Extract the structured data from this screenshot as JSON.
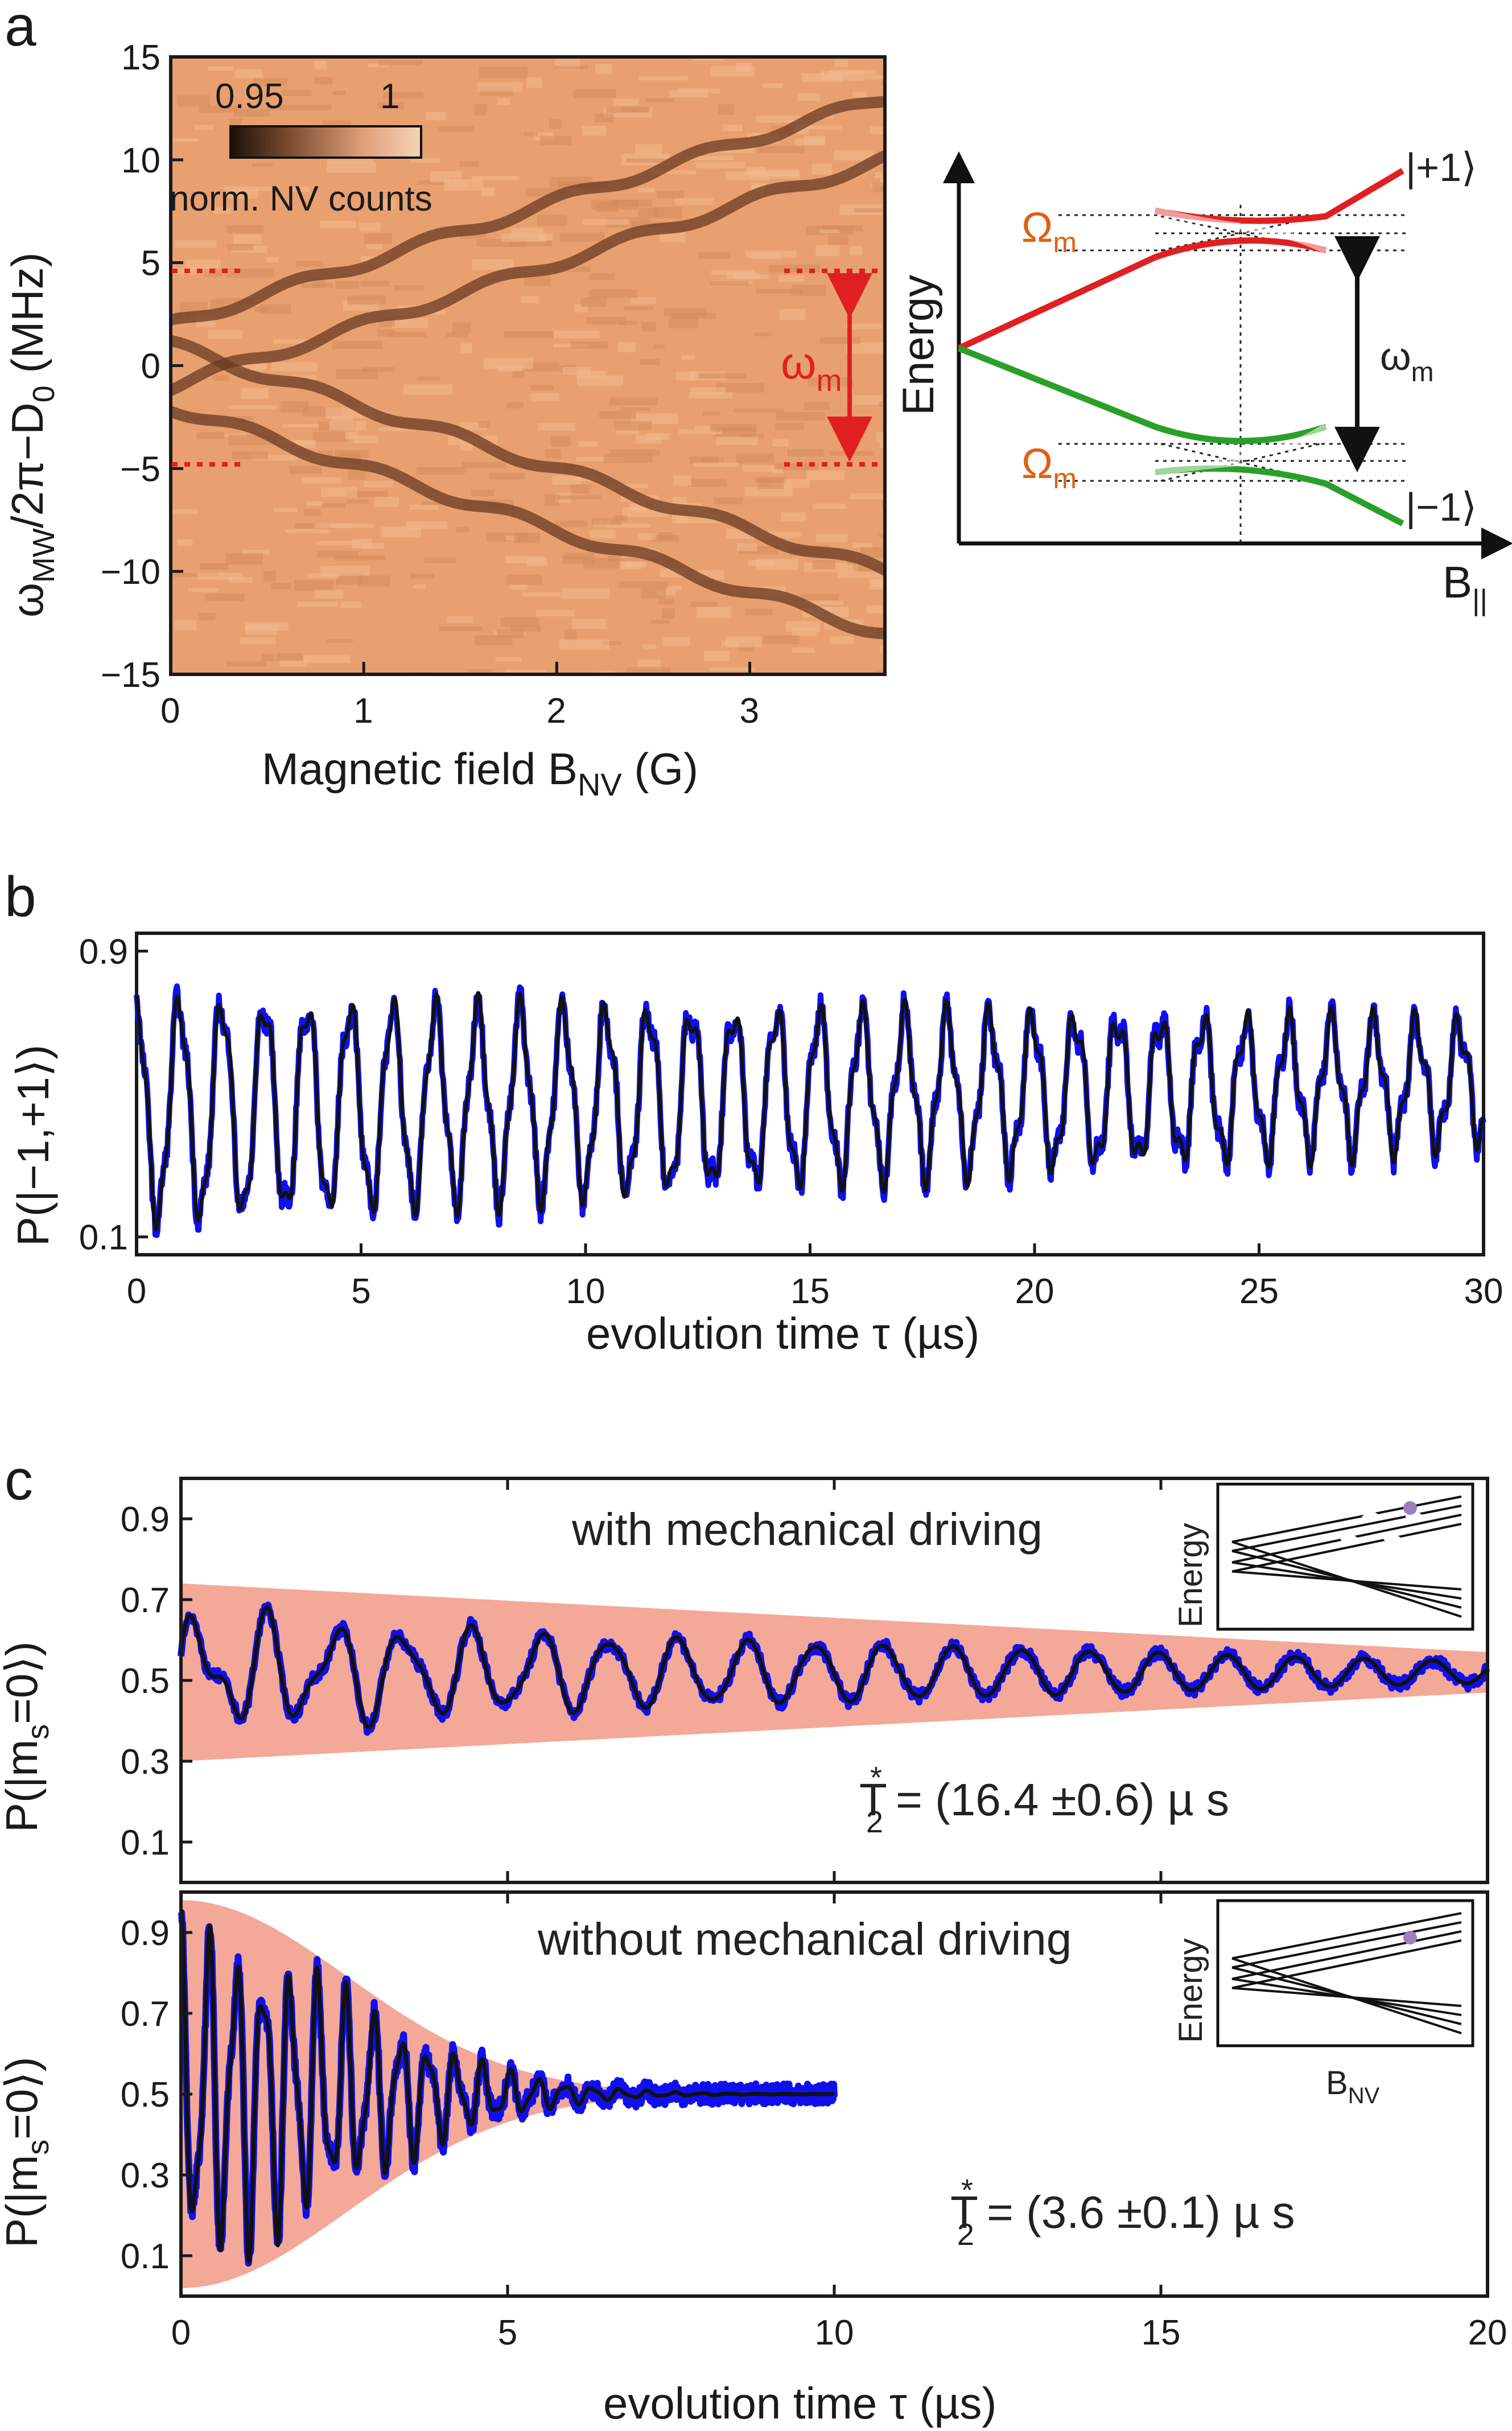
{
  "panels": {
    "a": {
      "letter": "a",
      "xlabel_main": "Magnetic field B",
      "xlabel_sub": "NV",
      "xlabel_unit": " (G)",
      "ylabel_parts": [
        "ω",
        "MW",
        "/2π−D",
        "0",
        " (MHz)"
      ],
      "colorbar": {
        "min_label": "0.95",
        "max_label": "1",
        "label": "norm. NV counts"
      },
      "omega_m_label": "ω",
      "omega_m_sub": "m",
      "xticks": [
        "0",
        "1",
        "2",
        "3"
      ],
      "yticks": [
        "15",
        "10",
        "5",
        "0",
        "−5",
        "−10",
        "−15"
      ]
    },
    "a_right": {
      "y_axis_label": "Energy",
      "x_axis_label": "B",
      "x_axis_sub": "||",
      "state_plus": "|+1⟩",
      "state_minus": "|−1⟩",
      "Omega_label": "Ω",
      "Omega_sub": "m",
      "omega_label": "ω",
      "omega_sub": "m"
    },
    "b": {
      "letter": "b",
      "ylabel": "P(|−1,+1⟩)",
      "xlabel": "evolution time τ (µs)",
      "xticks": [
        "0",
        "5",
        "10",
        "15",
        "20",
        "25",
        "30"
      ],
      "yticks": [
        "0.9",
        "0.1"
      ]
    },
    "c": {
      "letter": "c",
      "top_title": "with mechanical driving",
      "bottom_title": "without mechanical driving",
      "top_T2": "T",
      "top_T2_value": " = (16.4 ±0.6) µ s",
      "bottom_T2_value": " = (3.6 ±0.1) µ s",
      "T2_sub": "2",
      "T2_sup": "*",
      "ylabel": "P(|m",
      "ylabel_sub": "s",
      "ylabel_end": "=0⟩)",
      "xlabel": "evolution time τ (µs)",
      "xticks": [
        "0",
        "5",
        "10",
        "15",
        "20"
      ],
      "yticks": [
        "0.9",
        "0.7",
        "0.5",
        "0.3",
        "0.1"
      ],
      "inset_ylabel": "Energy",
      "inset_xlabel": "B",
      "inset_xsub": "NV"
    }
  },
  "colors": {
    "heatmap_bg": "#e8a070",
    "resonance_line": "#6b3a22",
    "red_marker": "#e02020",
    "omega_orange": "#e06010",
    "green": "#2aa02a",
    "red": "#e02020",
    "data_blue": "#1010ee",
    "fit_black": "#111111",
    "envelope": "#f3a898",
    "inset_dot": "#9a80c0"
  },
  "chart_data": [
    {
      "id": "a-heatmap",
      "type": "heatmap",
      "xlabel": "Magnetic field B_NV (G)",
      "ylabel": "ω_MW/2π−D_0 (MHz)",
      "xlim": [
        0,
        3.7
      ],
      "ylim": [
        -15,
        15
      ],
      "colorbar_range": [
        0.95,
        1
      ],
      "colorbar_label": "norm. NV counts",
      "resonance_branches": [
        {
          "name": "upper-1",
          "x": [
            0,
            1,
            2,
            3,
            3.7
          ],
          "y": [
            2,
            5,
            8,
            11,
            13
          ]
        },
        {
          "name": "upper-2",
          "x": [
            0,
            1,
            2,
            3,
            3.7
          ],
          "y": [
            -1,
            2,
            5,
            8,
            10
          ]
        },
        {
          "name": "lower-1",
          "x": [
            0,
            1,
            2,
            3,
            3.7
          ],
          "y": [
            1,
            -2,
            -5,
            -8,
            -10
          ]
        },
        {
          "name": "lower-2",
          "x": [
            0,
            1,
            2,
            3,
            3.7
          ],
          "y": [
            -2,
            -5,
            -8,
            -11,
            -13
          ]
        }
      ],
      "markers": {
        "omega_m_upper": 4.8,
        "omega_m_lower": -4.8
      }
    },
    {
      "id": "b-oscillation",
      "type": "line",
      "xlabel": "evolution time τ (µs)",
      "ylabel": "P(|−1,+1⟩)",
      "xlim": [
        0,
        30
      ],
      "ylim": [
        0.05,
        0.95
      ],
      "params": {
        "period_us": 0.95,
        "center_start": 0.45,
        "center_end": 0.53,
        "amp_start": 0.3,
        "amp_end": 0.16
      },
      "series": [
        {
          "name": "data",
          "color": "#1010ee"
        },
        {
          "name": "fit",
          "color": "#111111"
        }
      ]
    },
    {
      "id": "c-top",
      "type": "line",
      "xlabel": "evolution time τ (µs)",
      "ylabel": "P(|m_s=0⟩)",
      "xlim": [
        0,
        20
      ],
      "ylim": [
        0,
        1
      ],
      "title": "with mechanical driving",
      "T2star_us": 16.4,
      "T2star_err": 0.6,
      "envelope": {
        "center": 0.52,
        "half_width_start": 0.22,
        "half_width_end": 0.05
      },
      "series": [
        {
          "name": "data",
          "color": "#1010ee"
        },
        {
          "name": "fit",
          "color": "#111111"
        }
      ]
    },
    {
      "id": "c-bottom",
      "type": "line",
      "xlabel": "evolution time τ (µs)",
      "ylabel": "P(|m_s=0⟩)",
      "xlim": [
        0,
        20
      ],
      "ylim": [
        0,
        1
      ],
      "title": "without mechanical driving",
      "T2star_us": 3.6,
      "T2star_err": 0.1,
      "data_range_us": [
        0,
        10
      ],
      "envelope": {
        "center": 0.5,
        "half_width_start": 0.48,
        "decay_us": 3.6
      },
      "series": [
        {
          "name": "data",
          "color": "#1010ee"
        },
        {
          "name": "fit",
          "color": "#111111"
        }
      ]
    }
  ]
}
